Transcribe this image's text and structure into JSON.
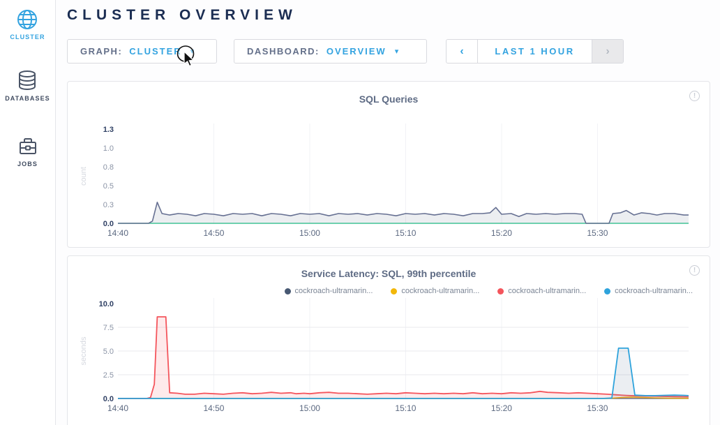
{
  "header": {
    "title": "CLUSTER OVERVIEW"
  },
  "sidebar": {
    "items": [
      {
        "label": "CLUSTER",
        "icon": "globe-icon",
        "active": true
      },
      {
        "label": "DATABASES",
        "icon": "database-icon",
        "active": false
      },
      {
        "label": "JOBS",
        "icon": "briefcase-icon",
        "active": false
      }
    ]
  },
  "controls": {
    "graph": {
      "label": "GRAPH:",
      "value": "CLUSTER",
      "caret": "▾"
    },
    "dashboard": {
      "label": "DASHBOARD:",
      "value": "OVERVIEW",
      "caret": "▾"
    },
    "timewindow": {
      "prev": "‹",
      "range": "LAST 1 HOUR",
      "next": "›"
    }
  },
  "colors": {
    "accent_blue": "#33a3e0",
    "navy_heading": "#1b2d52",
    "series_slate": "#667092",
    "series_green": "#3fc795",
    "series_red": "#f4555c",
    "series_yellow": "#f2b70a",
    "series_blue": "#2ea3dc",
    "legend_navy": "#475872"
  },
  "info_glyph": "!",
  "chart_data": [
    {
      "type": "area",
      "title": "SQL Queries",
      "ylabel": "count",
      "xlabel": "",
      "x_unit": "minutes after 14:40",
      "xlim": [
        0,
        59.5
      ],
      "ylim": [
        0,
        1.25
      ],
      "grid_y": [],
      "x_ticks": [
        {
          "t": 0,
          "label": "14:40"
        },
        {
          "t": 10,
          "label": "14:50"
        },
        {
          "t": 20,
          "label": "15:00"
        },
        {
          "t": 30,
          "label": "15:10"
        },
        {
          "t": 40,
          "label": "15:20"
        },
        {
          "t": 50,
          "label": "15:30"
        }
      ],
      "y_ticks": [
        {
          "v": 0,
          "label": "0.0",
          "strong": true
        },
        {
          "v": 0.25,
          "label": "0.3",
          "strong": false
        },
        {
          "v": 0.5,
          "label": "0.5",
          "strong": false
        },
        {
          "v": 0.75,
          "label": "0.8",
          "strong": false
        },
        {
          "v": 1.0,
          "label": "1.0",
          "strong": false
        },
        {
          "v": 1.25,
          "label": "1.3",
          "strong": true
        }
      ],
      "legend": null,
      "series": [
        {
          "name": "zero-baseline",
          "color": "#3fc795",
          "width": 1.6,
          "fill": "none",
          "points": [
            [
              0,
              0
            ],
            [
              59.5,
              0
            ]
          ]
        },
        {
          "name": "sql-queries",
          "color": "#667092",
          "width": 1.6,
          "fill": "rgba(108,120,150,0.13)",
          "points": [
            [
              0,
              0
            ],
            [
              3.2,
              0
            ],
            [
              3.6,
              0.03
            ],
            [
              4.1,
              0.28
            ],
            [
              4.6,
              0.13
            ],
            [
              5.4,
              0.11
            ],
            [
              6.3,
              0.13
            ],
            [
              7.2,
              0.12
            ],
            [
              8.1,
              0.1
            ],
            [
              9,
              0.13
            ],
            [
              10,
              0.12
            ],
            [
              11,
              0.1
            ],
            [
              12,
              0.13
            ],
            [
              13,
              0.12
            ],
            [
              14,
              0.13
            ],
            [
              15,
              0.1
            ],
            [
              16,
              0.13
            ],
            [
              17,
              0.12
            ],
            [
              18,
              0.1
            ],
            [
              19,
              0.13
            ],
            [
              20,
              0.12
            ],
            [
              21,
              0.13
            ],
            [
              22,
              0.1
            ],
            [
              23,
              0.13
            ],
            [
              24,
              0.12
            ],
            [
              25,
              0.13
            ],
            [
              26,
              0.11
            ],
            [
              27,
              0.13
            ],
            [
              28,
              0.12
            ],
            [
              29,
              0.1
            ],
            [
              30,
              0.13
            ],
            [
              31,
              0.12
            ],
            [
              32,
              0.13
            ],
            [
              33,
              0.11
            ],
            [
              34,
              0.13
            ],
            [
              35,
              0.12
            ],
            [
              36,
              0.1
            ],
            [
              37,
              0.13
            ],
            [
              38,
              0.13
            ],
            [
              38.8,
              0.14
            ],
            [
              39.4,
              0.21
            ],
            [
              40,
              0.12
            ],
            [
              41,
              0.13
            ],
            [
              41.8,
              0.09
            ],
            [
              42.6,
              0.13
            ],
            [
              43.6,
              0.12
            ],
            [
              44.6,
              0.13
            ],
            [
              45.6,
              0.12
            ],
            [
              46.6,
              0.13
            ],
            [
              47.6,
              0.13
            ],
            [
              48.4,
              0.12
            ],
            [
              48.8,
              0
            ],
            [
              51.2,
              0
            ],
            [
              51.6,
              0.13
            ],
            [
              52.4,
              0.14
            ],
            [
              53,
              0.17
            ],
            [
              53.8,
              0.11
            ],
            [
              54.6,
              0.14
            ],
            [
              55.4,
              0.13
            ],
            [
              56.2,
              0.11
            ],
            [
              57,
              0.13
            ],
            [
              58,
              0.13
            ],
            [
              59,
              0.11
            ],
            [
              59.5,
              0.11
            ]
          ]
        }
      ]
    },
    {
      "type": "area",
      "title": "Service Latency: SQL, 99th percentile",
      "ylabel": "seconds",
      "xlabel": "",
      "x_unit": "minutes after 14:40",
      "xlim": [
        0,
        59.5
      ],
      "ylim": [
        0,
        10
      ],
      "grid_y": [
        2.5,
        5,
        7.5
      ],
      "x_ticks": [
        {
          "t": 0,
          "label": "14:40"
        },
        {
          "t": 10,
          "label": "14:50"
        },
        {
          "t": 20,
          "label": "15:00"
        },
        {
          "t": 30,
          "label": "15:10"
        },
        {
          "t": 40,
          "label": "15:20"
        },
        {
          "t": 50,
          "label": "15:30"
        }
      ],
      "y_ticks": [
        {
          "v": 0,
          "label": "0.0",
          "strong": true
        },
        {
          "v": 2.5,
          "label": "2.5",
          "strong": false
        },
        {
          "v": 5,
          "label": "5.0",
          "strong": false
        },
        {
          "v": 7.5,
          "label": "7.5",
          "strong": false
        },
        {
          "v": 10,
          "label": "10.0",
          "strong": true
        }
      ],
      "legend": [
        {
          "label": "cockroach-ultramarin...",
          "color": "#475872"
        },
        {
          "label": "cockroach-ultramarin...",
          "color": "#f2b70a"
        },
        {
          "label": "cockroach-ultramarin...",
          "color": "#f4555c"
        },
        {
          "label": "cockroach-ultramarin...",
          "color": "#2ea3dc"
        }
      ],
      "series": [
        {
          "name": "node-1-latency",
          "color": "#5d6a87",
          "width": 1.5,
          "fill": "none",
          "points": [
            [
              0,
              0
            ],
            [
              59.5,
              0
            ]
          ]
        },
        {
          "name": "node-2-latency",
          "color": "#f2b70a",
          "width": 1.6,
          "fill": "rgba(242,183,10,0.18)",
          "points": [
            [
              0,
              0
            ],
            [
              51,
              0
            ],
            [
              52.5,
              0.1
            ],
            [
              53.5,
              0.15
            ],
            [
              54.8,
              0.1
            ],
            [
              56,
              0.06
            ],
            [
              57.5,
              0.03
            ],
            [
              59.5,
              0.02
            ]
          ]
        },
        {
          "name": "node-3-latency",
          "color": "#f4555c",
          "width": 1.8,
          "fill": "rgba(244,85,92,0.12)",
          "points": [
            [
              0,
              0
            ],
            [
              3,
              0
            ],
            [
              3.4,
              0.1
            ],
            [
              3.8,
              1.5
            ],
            [
              4.1,
              8.6
            ],
            [
              5,
              8.6
            ],
            [
              5.4,
              0.6
            ],
            [
              6.2,
              0.55
            ],
            [
              7,
              0.45
            ],
            [
              8,
              0.45
            ],
            [
              9,
              0.55
            ],
            [
              10,
              0.5
            ],
            [
              11,
              0.45
            ],
            [
              12,
              0.55
            ],
            [
              13,
              0.6
            ],
            [
              14,
              0.5
            ],
            [
              15,
              0.55
            ],
            [
              16,
              0.65
            ],
            [
              17,
              0.55
            ],
            [
              18,
              0.6
            ],
            [
              18.6,
              0.5
            ],
            [
              19.4,
              0.55
            ],
            [
              20,
              0.5
            ],
            [
              21,
              0.6
            ],
            [
              22,
              0.65
            ],
            [
              23,
              0.55
            ],
            [
              24,
              0.55
            ],
            [
              25,
              0.5
            ],
            [
              26,
              0.45
            ],
            [
              27,
              0.5
            ],
            [
              28,
              0.55
            ],
            [
              29,
              0.5
            ],
            [
              30,
              0.6
            ],
            [
              31,
              0.55
            ],
            [
              32,
              0.5
            ],
            [
              33,
              0.55
            ],
            [
              34,
              0.5
            ],
            [
              35,
              0.55
            ],
            [
              36,
              0.5
            ],
            [
              37,
              0.6
            ],
            [
              38,
              0.5
            ],
            [
              39,
              0.55
            ],
            [
              40,
              0.5
            ],
            [
              41,
              0.6
            ],
            [
              42,
              0.55
            ],
            [
              43,
              0.6
            ],
            [
              44,
              0.75
            ],
            [
              44.8,
              0.65
            ],
            [
              46,
              0.6
            ],
            [
              47,
              0.55
            ],
            [
              48,
              0.6
            ],
            [
              49,
              0.55
            ],
            [
              50,
              0.5
            ],
            [
              51,
              0.45
            ],
            [
              52,
              0.38
            ],
            [
              53,
              0.32
            ],
            [
              54,
              0.28
            ],
            [
              55,
              0.26
            ],
            [
              56,
              0.25
            ],
            [
              57,
              0.22
            ],
            [
              58,
              0.2
            ],
            [
              59.5,
              0.18
            ]
          ]
        },
        {
          "name": "node-4-latency",
          "color": "#2ea3dc",
          "width": 1.8,
          "fill": "rgba(93,116,150,0.12)",
          "points": [
            [
              0,
              0
            ],
            [
              50.5,
              0
            ],
            [
              51.5,
              0.05
            ],
            [
              52.2,
              5.3
            ],
            [
              53.2,
              5.3
            ],
            [
              53.9,
              0.35
            ],
            [
              55,
              0.3
            ],
            [
              56,
              0.3
            ],
            [
              57,
              0.33
            ],
            [
              58,
              0.35
            ],
            [
              59,
              0.33
            ],
            [
              59.5,
              0.3
            ]
          ]
        }
      ]
    }
  ]
}
